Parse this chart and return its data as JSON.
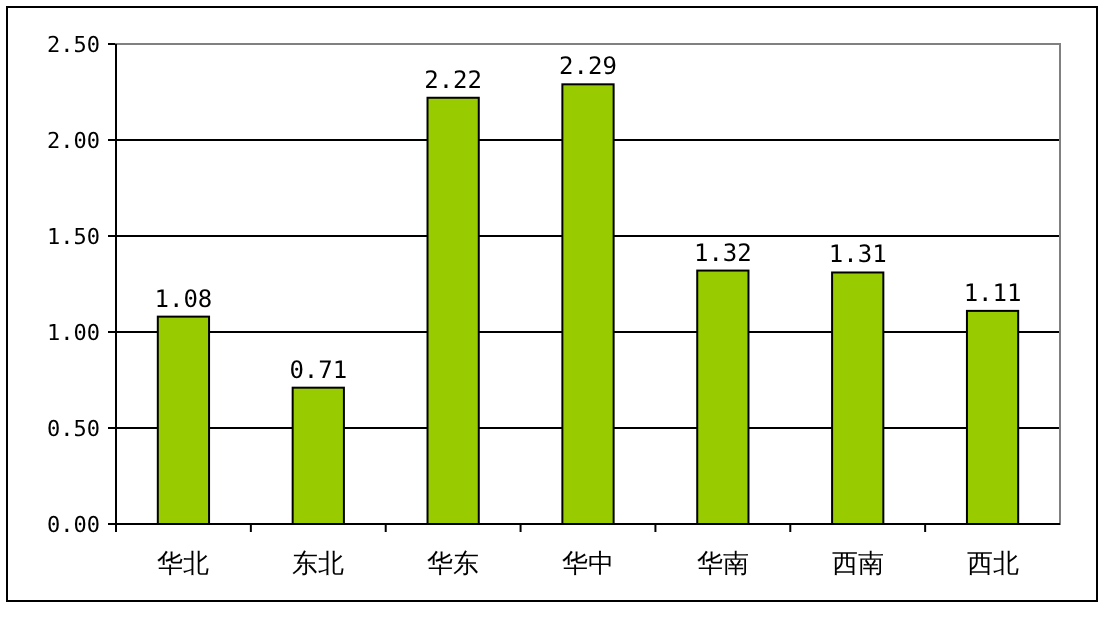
{
  "chart_data": {
    "type": "bar",
    "categories": [
      "华北",
      "东北",
      "华东",
      "华中",
      "华南",
      "西南",
      "西北"
    ],
    "values": [
      1.08,
      0.71,
      2.22,
      2.29,
      1.32,
      1.31,
      1.11
    ],
    "color": "#99cc00",
    "ylim": [
      0,
      2.5
    ],
    "yticks": [
      {
        "value": 0,
        "label": "0.00"
      },
      {
        "value": 0.5,
        "label": "0.50"
      },
      {
        "value": 1,
        "label": "1.00"
      },
      {
        "value": 1.5,
        "label": "1.50"
      },
      {
        "value": 2,
        "label": "2.00"
      },
      {
        "value": 2.5,
        "label": "2.50"
      }
    ],
    "grid": "y",
    "data_labels": true
  }
}
